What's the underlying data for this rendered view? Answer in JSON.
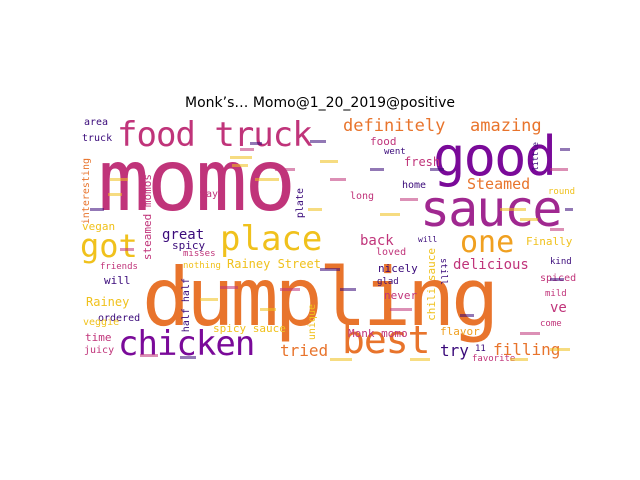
{
  "title": "Monk’s… Momo@1_20_2019@positive",
  "palette": [
    "#c0347a",
    "#e8742c",
    "#7a0a99",
    "#f0c11c",
    "#a02890",
    "#3a0a7a"
  ],
  "words": {
    "momo": "momo",
    "good": "good",
    "sauce": "sauce",
    "dumpling": "dumpling",
    "food_truck": "food truck",
    "chicken": "chicken",
    "best": "best",
    "place": "place",
    "got": "got",
    "one": "one",
    "definitely": "definitely",
    "amazing": "amazing",
    "steamed": "Steamed",
    "filling": "filling",
    "tried": "tried",
    "try": "try",
    "great": "great",
    "back": "back",
    "delicious": "delicious",
    "rainey_street": "Rainey Street",
    "spicy_sauce": "spicy sauce",
    "monk_momo": "Monk momo",
    "steamed_momos": "steamed momos",
    "fresh": "fresh",
    "home": "home",
    "spicy": "spicy",
    "vegan": "vegan",
    "truck": "truck",
    "area": "area",
    "interesting": "interesting",
    "veggie": "veggie",
    "rainey": "Rainey",
    "time": "time",
    "juicy": "juicy",
    "will": "will",
    "ordered": "ordered",
    "friends": "friends",
    "half_half": "half half",
    "unique": "unique",
    "loved": "loved",
    "nicely": "nicely",
    "glad": "glad",
    "never": "never",
    "flavor": "flavor",
    "favorite": "favorite",
    "chili_sauce": "chili sauce",
    "finally": "Finally",
    "kind": "kind",
    "spiced": "spiced",
    "ve": "ve",
    "mild": "mild",
    "come": "come",
    "food": "food",
    "long": "long",
    "way": "way",
    "plate": "plate",
    "misses": "misses",
    "nothing": "nothing",
    "went": "went",
    "round": "round",
    "little": "little",
    "still": "still",
    "will2": "will",
    "eleven": "11"
  }
}
